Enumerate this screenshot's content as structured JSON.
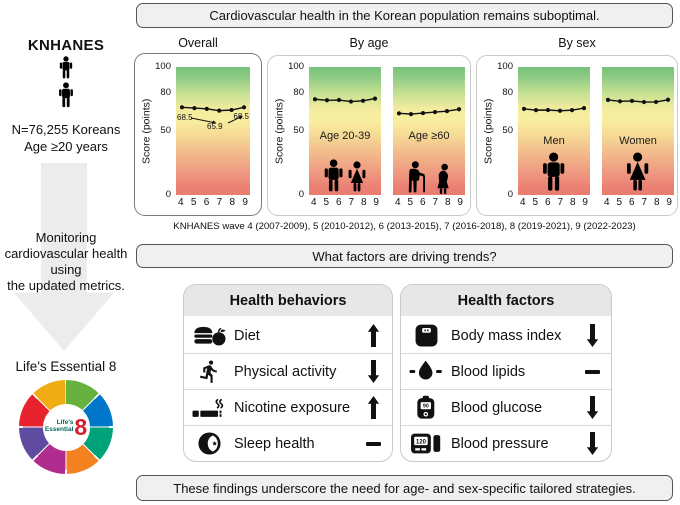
{
  "sidebar": {
    "title": "KNHANES",
    "population": "N=76,255 Koreans",
    "age_criteria": "Age ≥20 years",
    "arrow_lines": [
      "Monitoring",
      "cardiovascular health",
      "using",
      "the updated metrics."
    ],
    "logo_label": "Life's Essential 8",
    "logo_center": {
      "line1": "Life's",
      "line2": "Essential",
      "numeral": "8"
    },
    "logo_segment_colors": {
      "diet": "#67b23e",
      "physical_activity": "#0077c8",
      "blood_lipids": "#00a27a",
      "weight": "#f58220",
      "blood_glucose": "#b02c8f",
      "blood_pressure": "#5f4ba0",
      "nicotine": "#e8232e",
      "sleep": "#f0ac13"
    }
  },
  "banners": {
    "top": "Cardiovascular health in the Korean population remains suboptimal.",
    "middle": "What factors are driving trends?",
    "bottom": "These findings underscore the need for age- and sex-specific tailored strategies."
  },
  "charts_section": {
    "panel_titles": [
      "Overall",
      "By age",
      "By sex"
    ],
    "ylabel": "Score (points)",
    "yticks": [
      "100",
      "80",
      "50",
      "0"
    ],
    "xticks": [
      "4",
      "5",
      "6",
      "7",
      "8",
      "9"
    ],
    "caption": "KNHANES wave 4 (2007-2009), 5 (2010-2012), 6 (2013-2015), 7 (2016-2018), 8 (2019-2021), 9 (2022-2023)",
    "score_gradient": {
      "high": "#7dc67f",
      "mid": "#f8ee9f",
      "low": "#ec8276"
    }
  },
  "chart_data": [
    {
      "type": "line",
      "title": "Overall",
      "x": [
        "4",
        "5",
        "6",
        "7",
        "8",
        "9"
      ],
      "values": [
        68.5,
        67.9,
        67.3,
        65.9,
        66.4,
        68.5
      ],
      "ylim": [
        0,
        100
      ],
      "yticks": [
        100,
        80,
        50,
        0
      ],
      "ylabel": "Score (points)",
      "annotations": [
        "68.5",
        "65.9",
        "68.5"
      ]
    },
    {
      "type": "line",
      "title": "Age 20-39",
      "label": "Age 20-39",
      "x": [
        "4",
        "5",
        "6",
        "7",
        "8",
        "9"
      ],
      "values": [
        74.8,
        74.0,
        74.2,
        73.0,
        73.6,
        75.3
      ],
      "ylim": [
        0,
        100
      ]
    },
    {
      "type": "line",
      "title": "Age ≥60",
      "label": "Age ≥60",
      "x": [
        "4",
        "5",
        "6",
        "7",
        "8",
        "9"
      ],
      "values": [
        63.8,
        63.2,
        64.0,
        64.8,
        65.5,
        67.0
      ],
      "ylim": [
        0,
        100
      ]
    },
    {
      "type": "line",
      "title": "Men",
      "label": "Men",
      "x": [
        "4",
        "5",
        "6",
        "7",
        "8",
        "9"
      ],
      "values": [
        67.3,
        66.3,
        66.4,
        65.8,
        66.3,
        67.9
      ],
      "ylim": [
        0,
        100
      ]
    },
    {
      "type": "line",
      "title": "Women",
      "label": "Women",
      "x": [
        "4",
        "5",
        "6",
        "7",
        "8",
        "9"
      ],
      "values": [
        74.3,
        73.2,
        73.5,
        72.6,
        72.7,
        74.4
      ],
      "ylim": [
        0,
        100
      ]
    }
  ],
  "behaviors": {
    "title": "Health behaviors",
    "rows": [
      {
        "label": "Diet",
        "icon": "diet-icon",
        "trend": "up"
      },
      {
        "label": "Physical activity",
        "icon": "running-icon",
        "trend": "down"
      },
      {
        "label": "Nicotine exposure",
        "icon": "cigarette-icon",
        "trend": "up"
      },
      {
        "label": "Sleep health",
        "icon": "moon-icon",
        "trend": "flat"
      }
    ]
  },
  "factors": {
    "title": "Health factors",
    "rows": [
      {
        "label": "Body mass index",
        "icon": "scale-icon",
        "trend": "down"
      },
      {
        "label": "Blood lipids",
        "icon": "blood-drop-icon",
        "trend": "flat"
      },
      {
        "label": "Blood glucose",
        "icon": "glucometer-icon",
        "icon_text": "90",
        "trend": "down"
      },
      {
        "label": "Blood pressure",
        "icon": "bp-monitor-icon",
        "icon_text": "120",
        "trend": "down"
      }
    ]
  }
}
